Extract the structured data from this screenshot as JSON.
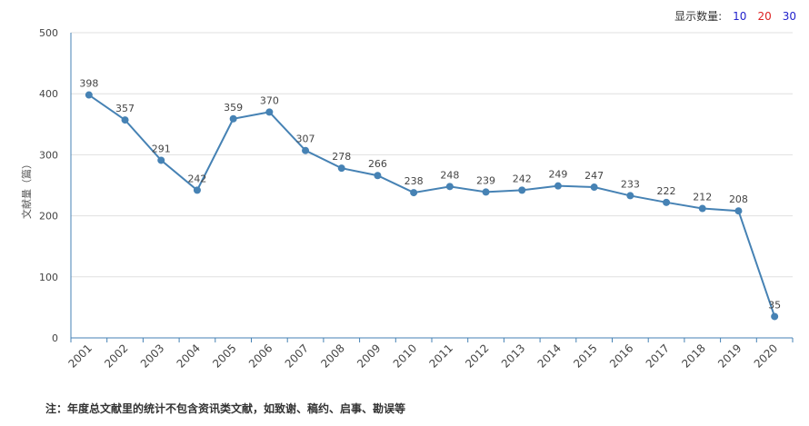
{
  "selector": {
    "label": "显示数量:",
    "options": [
      {
        "label": "10",
        "color": "#2222cc"
      },
      {
        "label": "20",
        "color": "#dd2222"
      },
      {
        "label": "30",
        "color": "#2222cc"
      }
    ]
  },
  "footnote": "注：年度总文献里的统计不包含资讯类文献，如致谢、稿约、启事、勘误等",
  "chart_data": {
    "type": "line",
    "title": "",
    "xlabel": "",
    "ylabel": "文献量（篇）",
    "ylim": [
      0,
      500
    ],
    "yticks": [
      0,
      100,
      200,
      300,
      400,
      500
    ],
    "grid": true,
    "line_color": "#4682b4",
    "categories": [
      "2001",
      "2002",
      "2003",
      "2004",
      "2005",
      "2006",
      "2007",
      "2008",
      "2009",
      "2010",
      "2011",
      "2012",
      "2013",
      "2014",
      "2015",
      "2016",
      "2017",
      "2018",
      "2019",
      "2020"
    ],
    "values": [
      398,
      357,
      291,
      242,
      359,
      370,
      307,
      278,
      266,
      238,
      248,
      239,
      242,
      249,
      247,
      233,
      222,
      212,
      208,
      35
    ]
  }
}
